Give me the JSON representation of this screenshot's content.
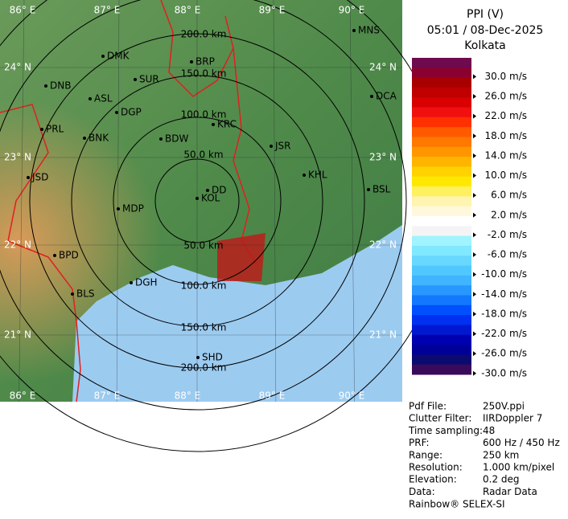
{
  "header": {
    "title": "PPI (V)",
    "time": "05:01 / 08-Dec-2025",
    "station": "Kolkata"
  },
  "legend": {
    "colors": [
      "#6e0a4e",
      "#8a0030",
      "#a80000",
      "#c00000",
      "#d80000",
      "#f01010",
      "#ff3000",
      "#ff5a00",
      "#ff7800",
      "#ff9600",
      "#ffb400",
      "#ffd200",
      "#ffe800",
      "#fff060",
      "#fff4b0",
      "#fff8dc",
      "#ffffff",
      "#f4f4f4",
      "#a0f4ff",
      "#80e8ff",
      "#68d8ff",
      "#50c8ff",
      "#40b4ff",
      "#2898ff",
      "#1478ff",
      "#0050ff",
      "#0030f0",
      "#0018d0",
      "#0000b0",
      "#000098",
      "#0a0a70",
      "#3a0a5a"
    ],
    "labels": [
      "30.0 m/s",
      "26.0 m/s",
      "22.0 m/s",
      "18.0 m/s",
      "14.0 m/s",
      "10.0 m/s",
      "6.0 m/s",
      "2.0 m/s",
      "-2.0 m/s",
      "-6.0 m/s",
      "-10.0 m/s",
      "-14.0 m/s",
      "-18.0 m/s",
      "-22.0 m/s",
      "-26.0 m/s",
      "-30.0 m/s"
    ]
  },
  "map": {
    "lon_labels_top": [
      "86° E",
      "87° E",
      "88° E",
      "89° E",
      "90° E"
    ],
    "lon_labels_bottom": [
      "86° E",
      "87° E",
      "88° E",
      "89° E",
      "90° E"
    ],
    "lat_labels_left": [
      "24° N",
      "23° N",
      "22° N",
      "21° N"
    ],
    "lat_labels_right": [
      "24° N",
      "23° N",
      "22° N",
      "21° N"
    ],
    "range_labels_north": [
      "200.0 km",
      "150.0 km",
      "100.0 km",
      "50.0 km"
    ],
    "range_labels_south": [
      "50.0 km",
      "100.0 km",
      "150.0 km",
      "200.0 km"
    ],
    "cities": [
      "MNS",
      "DMK",
      "BRP",
      "DNB",
      "SUR",
      "ASL",
      "DGP",
      "DCA",
      "PRL",
      "BNK",
      "KRC",
      "BDW",
      "JSR",
      "KHL",
      "JSD",
      "DD",
      "KOL",
      "BSL",
      "MDP",
      "BPD",
      "BLS",
      "DGH",
      "SHD"
    ]
  },
  "info": {
    "rows": [
      [
        "Pdf File:",
        "250V.ppi"
      ],
      [
        "Clutter Filter:",
        "IIRDoppler 7"
      ],
      [
        "Time sampling:",
        "48"
      ],
      [
        "PRF:",
        "600 Hz / 450 Hz"
      ],
      [
        "Range:",
        "250 km"
      ],
      [
        "Resolution:",
        "1.000 km/pixel"
      ],
      [
        "Elevation:",
        "0.2 deg"
      ],
      [
        "Data:",
        "Radar Data"
      ]
    ],
    "footer": "Rainbow® SELEX-SI"
  }
}
